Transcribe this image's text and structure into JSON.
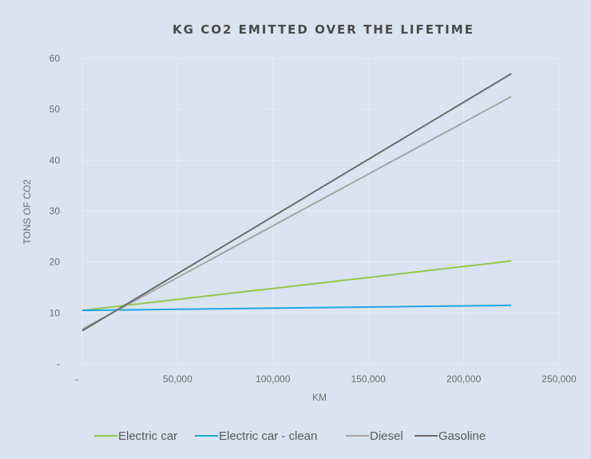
{
  "chart_data": {
    "type": "line",
    "title": "KG CO2 EMITTED OVER THE LIFETIME",
    "xlabel": "KM",
    "ylabel": "TONS OF CO2",
    "xlim": [
      0,
      250000
    ],
    "ylim": [
      0,
      60
    ],
    "x_ticks": [
      "-",
      "50,000",
      "100,000",
      "150,000",
      "200,000",
      "250,000"
    ],
    "y_ticks": [
      "-",
      "10",
      "20",
      "30",
      "40",
      "50",
      "60"
    ],
    "grid": true,
    "legend_position": "bottom",
    "series": [
      {
        "name": "Electric car",
        "color": "#92c84e",
        "x": [
          0,
          225000
        ],
        "y": [
          10.5,
          20.2
        ],
        "curve": "slightly-concave"
      },
      {
        "name": "Electric car - clean",
        "color": "#1fa7e1",
        "x": [
          0,
          225000
        ],
        "y": [
          10.5,
          11.5
        ]
      },
      {
        "name": "Diesel",
        "color": "#a6a6a6",
        "x": [
          0,
          225000
        ],
        "y": [
          6.8,
          52.5
        ]
      },
      {
        "name": "Gasoline",
        "color": "#6b6b6b",
        "x": [
          0,
          225000
        ],
        "y": [
          6.5,
          57
        ]
      }
    ]
  }
}
